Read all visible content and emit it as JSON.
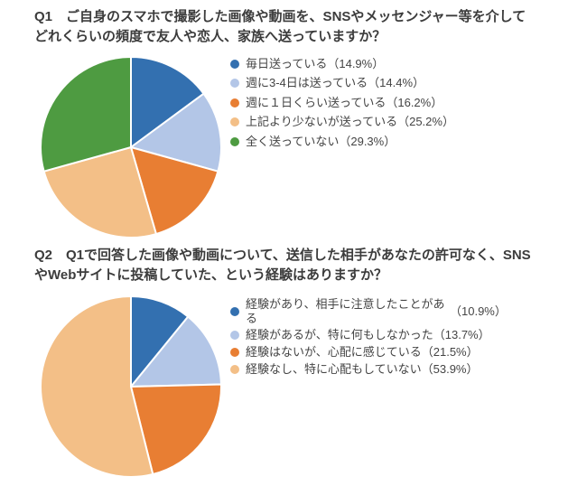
{
  "chart_data": [
    {
      "type": "pie",
      "question_no": "Q1",
      "title": "Q1　ご自身のスマホで撮影した画像や動画を、SNSやメッセンジャー等を介してどれくらいの頻度で友人や恋人、家族へ送っていますか？",
      "title_line1": "Q1　ご自身のスマホで撮影した画像や動画を、SNSやメッセンジャー等を介して",
      "title_line2": "どれくらいの頻度で友人や恋人、家族へ送っていますか？",
      "labels": [
        "毎日送っている",
        "週に3-4日は送っている",
        "週に１日くらい送っている",
        "上記より少ないが送っている",
        "全く送っていない"
      ],
      "values": [
        14.9,
        14.4,
        16.2,
        25.2,
        29.3
      ],
      "pct_labels": [
        "14.9%",
        "14.4%",
        "16.2%",
        "25.2%",
        "29.3%"
      ],
      "pct_display": [
        "（14.9%）",
        "（14.4%）",
        "（16.2%）",
        "（25.2%）",
        "（29.3%）"
      ],
      "colors": [
        "#3370B0",
        "#B3C6E7",
        "#E87E33",
        "#F3BF87",
        "#4E9B41"
      ],
      "start_angle_deg": 0,
      "direction": "clockwise",
      "legend_position": "right"
    },
    {
      "type": "pie",
      "question_no": "Q2",
      "title": "Q2　Q1で回答した画像や動画について、送信した相手があなたの許可なく、SNSやWebサイトに投稿していた、という経験はありますか？",
      "title_line1": "Q2　Q1で回答した画像や動画について、送信した相手があなたの許可なく、SNS",
      "title_line2": "やWebサイトに投稿していた、という経験はありますか？",
      "labels": [
        "経験があり、相手に注意したことがある",
        "経験があるが、特に何もしなかった",
        "経験はないが、心配に感じている",
        "経験なし、特に心配もしていない"
      ],
      "values": [
        10.9,
        13.7,
        21.5,
        53.9
      ],
      "pct_labels": [
        "10.9%",
        "13.7%",
        "21.5%",
        "53.9%"
      ],
      "pct_display": [
        "（10.9%）",
        "（13.7%）",
        "（21.5%）",
        "（53.9%）"
      ],
      "colors": [
        "#3370B0",
        "#B3C6E7",
        "#E87E33",
        "#F3BF87"
      ],
      "start_angle_deg": 0,
      "direction": "clockwise",
      "legend_position": "right"
    }
  ],
  "style": {
    "background": "#ffffff",
    "title_color": "#3c3c3c",
    "legend_text_color": "#444444",
    "slice_border_color": "#ffffff"
  }
}
